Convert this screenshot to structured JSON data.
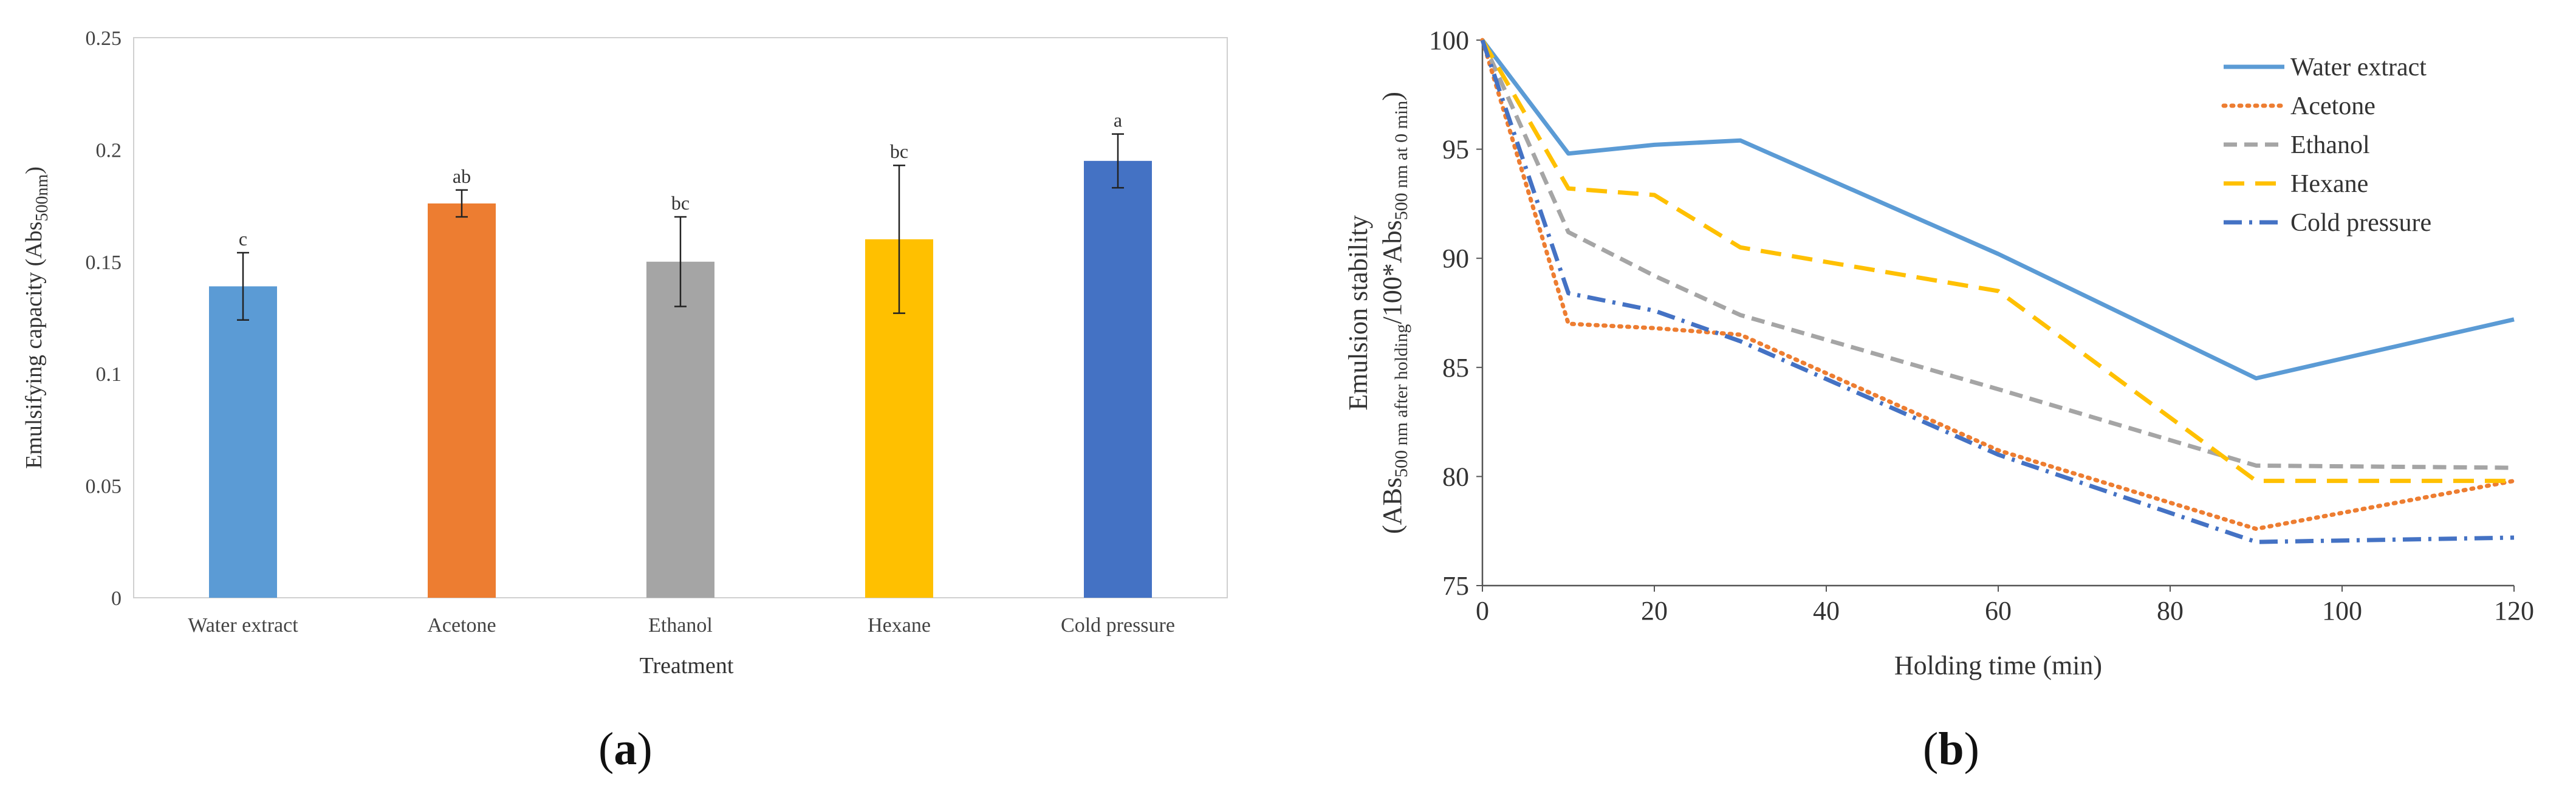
{
  "chart_data": [
    {
      "type": "bar",
      "panel": "a",
      "title": "",
      "xlabel": "Treatment",
      "ylabel": "Emulsifying capacity (Abs500nm)",
      "ylabel_main": "Emulsifying capacity (Abs",
      "ylabel_sub": "500nm",
      "ylabel_end": ")",
      "categories": [
        "Water extract",
        "Acetone",
        "Ethanol",
        "Hexane",
        "Cold pressure"
      ],
      "values": [
        0.139,
        0.176,
        0.15,
        0.16,
        0.195
      ],
      "errors": [
        0.015,
        0.006,
        0.02,
        0.033,
        0.012
      ],
      "significance": [
        "c",
        "ab",
        "bc",
        "bc",
        "a"
      ],
      "colors": [
        "#5b9bd5",
        "#ed7d31",
        "#a5a5a5",
        "#ffc000",
        "#4472c4"
      ],
      "ylim": [
        0,
        0.25
      ],
      "yticks": [
        0,
        0.05,
        0.1,
        0.15,
        0.2,
        0.25
      ],
      "ytick_labels": [
        "0",
        "0.05",
        "0.1",
        "0.15",
        "0.2",
        "0.25"
      ],
      "grid": false
    },
    {
      "type": "line",
      "panel": "b",
      "title": "",
      "xlabel": "Holding time (min)",
      "ylabel_line1": "Emulsion stability",
      "ylabel_line2": "(ABs500 nm after holding/100*Abs500 nm at 0 min)",
      "ylabel_p1": "(ABs",
      "ylabel_s1": "500 nm after holding",
      "ylabel_p2": "/100*Abs",
      "ylabel_s2": "500 nm at 0 min",
      "ylabel_p3": ")",
      "x": [
        0,
        10,
        20,
        30,
        60,
        90,
        120
      ],
      "xlim": [
        0,
        120
      ],
      "xticks": [
        0,
        20,
        40,
        60,
        80,
        100,
        120
      ],
      "ylim": [
        75,
        100
      ],
      "yticks": [
        75,
        80,
        85,
        90,
        95,
        100
      ],
      "legend_position": "top-right",
      "grid": false,
      "series": [
        {
          "name": "Water extract",
          "values": [
            100,
            94.8,
            95.2,
            95.4,
            90.2,
            84.5,
            87.2
          ],
          "color": "#5b9bd5",
          "dash": "solid"
        },
        {
          "name": "Acetone",
          "values": [
            100,
            87.0,
            86.8,
            86.5,
            81.2,
            77.6,
            79.8
          ],
          "color": "#ed7d31",
          "dash": "dot"
        },
        {
          "name": "Ethanol",
          "values": [
            100,
            91.2,
            89.2,
            87.4,
            84.0,
            80.5,
            80.4
          ],
          "color": "#a5a5a5",
          "dash": "dash"
        },
        {
          "name": "Hexane",
          "values": [
            100,
            93.2,
            92.9,
            90.5,
            88.5,
            79.8,
            79.8
          ],
          "color": "#ffc000",
          "dash": "longdash"
        },
        {
          "name": "Cold pressure",
          "values": [
            100,
            88.4,
            87.6,
            86.2,
            81.0,
            77.0,
            77.2
          ],
          "color": "#4472c4",
          "dash": "dashdot"
        }
      ]
    }
  ],
  "captions": {
    "a": "a",
    "b": "b",
    "open": "(",
    "close": ")"
  }
}
